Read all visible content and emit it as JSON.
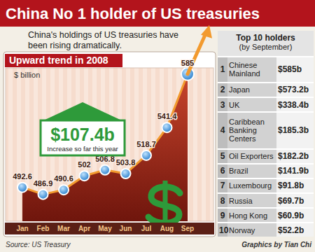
{
  "header": {
    "title": "China No 1 holder of US treasuries",
    "subtitle": "China's holdings of US treasuries have been rising dramatically."
  },
  "chart_data": {
    "type": "line",
    "title": "Upward trend in 2008",
    "y_label": "$ billion",
    "categories": [
      "Jan",
      "Feb",
      "Mar",
      "Apr",
      "May",
      "Jun",
      "Jul",
      "Aug",
      "Sep"
    ],
    "values": [
      492.6,
      486.9,
      490.6,
      502,
      506.8,
      503.8,
      518.7,
      541.4,
      585
    ],
    "color": "#f29a2e",
    "marker": "circle",
    "ylim": [
      465,
      590
    ],
    "tick_labels": "x",
    "data_labels": true,
    "annotations": [
      "$107.4b",
      "Increase so far this year"
    ]
  },
  "table": {
    "title": "Top 10 holders",
    "subtitle": "(by September)",
    "rows": [
      [
        "1",
        "Chinese Mainland",
        "$585b"
      ],
      [
        "2",
        "Japan",
        "$573.2b"
      ],
      [
        "3",
        "UK",
        "$338.4b"
      ],
      [
        "4",
        "Caribbean Banking Centers",
        "$185.3b"
      ],
      [
        "5",
        "Oil Exporters",
        "$182.2b"
      ],
      [
        "6",
        "Brazil",
        "$141.9b"
      ],
      [
        "7",
        "Luxembourg",
        "$91.8b"
      ],
      [
        "8",
        "Russia",
        "$69.7b"
      ],
      [
        "9",
        "Hong Kong",
        "$60.9b"
      ],
      [
        "10",
        "Norway",
        "$52.2b"
      ]
    ]
  },
  "footer": {
    "source": "Source: US Treasury",
    "credit": "Graphics by Tian Chi"
  }
}
